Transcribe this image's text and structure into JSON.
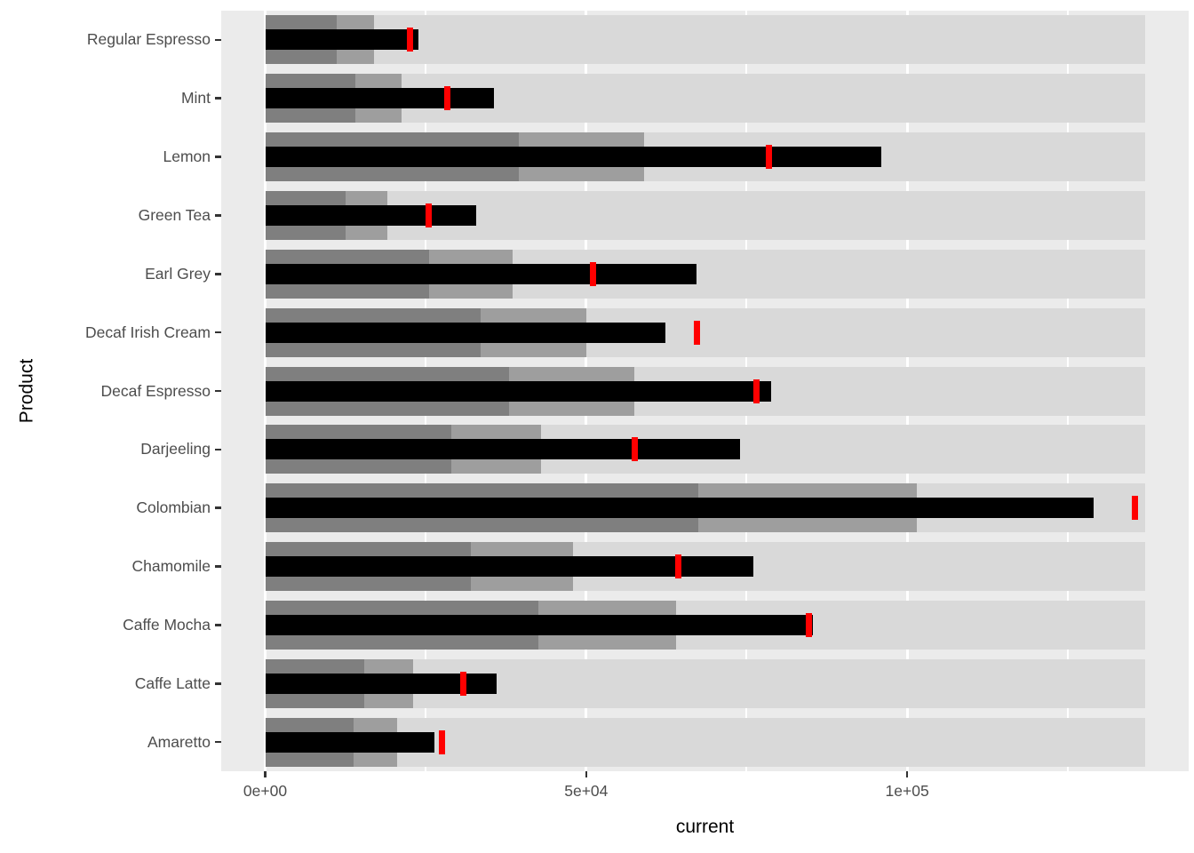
{
  "chart_data": {
    "type": "bar",
    "subtype": "bullet",
    "title": "",
    "xlabel": "current",
    "ylabel": "Product",
    "x_domain": [
      -6850,
      143850
    ],
    "x_ticks_major": [
      {
        "value": 0,
        "label": "0e+00"
      },
      {
        "value": 50000,
        "label": "5e+04"
      },
      {
        "value": 100000,
        "label": "1e+05"
      }
    ],
    "x_ticks_minor": [
      25000,
      75000,
      125000
    ],
    "grid": "white-on-grey",
    "legend_position": "none",
    "categories": [
      "Regular Espresso",
      "Mint",
      "Lemon",
      "Green Tea",
      "Earl Grey",
      "Decaf Irish Cream",
      "Decaf Espresso",
      "Darjeeling",
      "Colombian",
      "Chamomile",
      "Caffe Mocha",
      "Caffe Latte",
      "Amaretto"
    ],
    "series": [
      {
        "product": "Regular Espresso",
        "range_low": 11100,
        "range_mid": 16900,
        "range_high": 137000,
        "current": 23900,
        "target": 22500
      },
      {
        "product": "Mint",
        "range_low": 14100,
        "range_mid": 21300,
        "range_high": 137000,
        "current": 35700,
        "target": 28400
      },
      {
        "product": "Lemon",
        "range_low": 39500,
        "range_mid": 59000,
        "range_high": 137000,
        "current": 96000,
        "target": 78500
      },
      {
        "product": "Green Tea",
        "range_low": 12500,
        "range_mid": 19000,
        "range_high": 137000,
        "current": 32800,
        "target": 25400
      },
      {
        "product": "Earl Grey",
        "range_low": 25500,
        "range_mid": 38500,
        "range_high": 137000,
        "current": 67200,
        "target": 51100
      },
      {
        "product": "Decaf Irish Cream",
        "range_low": 33500,
        "range_mid": 50000,
        "range_high": 137000,
        "current": 62400,
        "target": 67200
      },
      {
        "product": "Decaf Espresso",
        "range_low": 38000,
        "range_mid": 57500,
        "range_high": 137000,
        "current": 78800,
        "target": 76500
      },
      {
        "product": "Darjeeling",
        "range_low": 29000,
        "range_mid": 43000,
        "range_high": 137000,
        "current": 73900,
        "target": 57500
      },
      {
        "product": "Colombian",
        "range_low": 67500,
        "range_mid": 101500,
        "range_high": 137000,
        "current": 129000,
        "target": 135500
      },
      {
        "product": "Chamomile",
        "range_low": 32000,
        "range_mid": 48000,
        "range_high": 137000,
        "current": 76100,
        "target": 64300
      },
      {
        "product": "Caffe Mocha",
        "range_low": 42500,
        "range_mid": 64000,
        "range_high": 137000,
        "current": 85300,
        "target": 84700
      },
      {
        "product": "Caffe Latte",
        "range_low": 15400,
        "range_mid": 23100,
        "range_high": 137000,
        "current": 36000,
        "target": 30900
      },
      {
        "product": "Amaretto",
        "range_low": 13700,
        "range_mid": 20500,
        "range_high": 137000,
        "current": 26400,
        "target": 27500
      }
    ],
    "colors": {
      "panel_background": "#ebebeb",
      "gridline": "#ffffff",
      "range_high": "#d9d9d9",
      "range_mid": "#9e9e9e",
      "range_low": "#7f7f7f",
      "measure": "#000000",
      "target": "#ff0000",
      "axis_text": "#4d4d4d",
      "axis_title": "#000000",
      "tick_mark": "#333333"
    }
  }
}
